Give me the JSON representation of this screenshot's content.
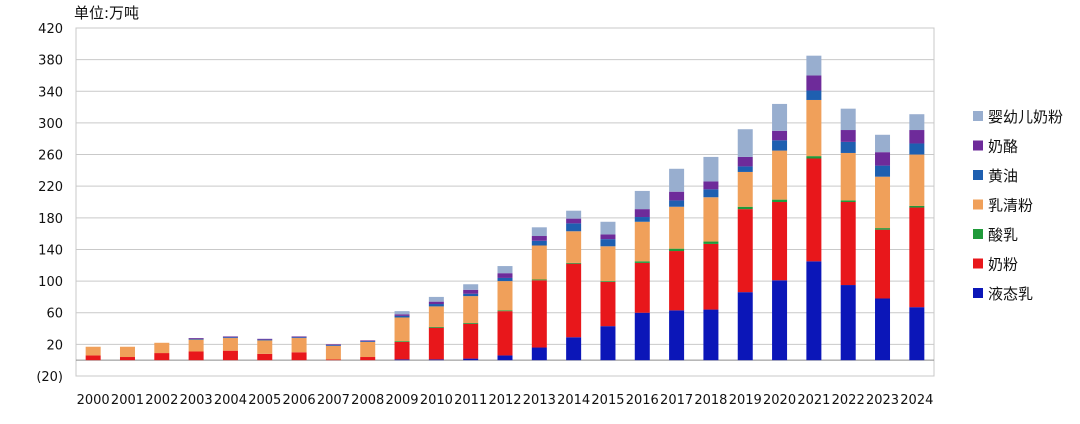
{
  "chart_data": {
    "type": "bar",
    "stacked": true,
    "unit_label": "单位:万吨",
    "categories": [
      "2000",
      "2001",
      "2002",
      "2003",
      "2004",
      "2005",
      "2006",
      "2007",
      "2008",
      "2009",
      "2010",
      "2011",
      "2012",
      "2013",
      "2014",
      "2015",
      "2016",
      "2017",
      "2018",
      "2019",
      "2020",
      "2021",
      "2022",
      "2023",
      "2024"
    ],
    "series": [
      {
        "name": "液态乳",
        "color": "#0b16b8",
        "values": [
          0,
          0,
          0,
          0,
          0,
          0,
          0,
          0,
          0,
          1,
          1,
          2,
          6,
          16,
          29,
          43,
          60,
          63,
          64,
          86,
          101,
          125,
          95,
          78,
          67
        ]
      },
      {
        "name": "奶粉",
        "color": "#e8171b",
        "values": [
          6,
          4,
          9,
          11,
          12,
          8,
          10,
          1,
          4,
          22,
          40,
          44,
          56,
          85,
          93,
          56,
          63,
          75,
          83,
          105,
          99,
          130,
          105,
          87,
          126
        ]
      },
      {
        "name": "酸乳",
        "color": "#1f9a3a",
        "values": [
          0,
          0,
          0,
          0,
          0,
          0,
          0,
          0,
          0,
          1,
          1,
          1,
          1,
          1,
          1,
          1,
          2,
          3,
          3,
          3,
          3,
          3,
          2,
          2,
          2
        ]
      },
      {
        "name": "乳清粉",
        "color": "#f0a05a",
        "values": [
          11,
          13,
          13,
          15,
          16,
          17,
          18,
          17,
          19,
          30,
          26,
          34,
          37,
          43,
          40,
          44,
          50,
          53,
          56,
          44,
          62,
          71,
          60,
          65,
          65
        ]
      },
      {
        "name": "黄油",
        "color": "#1e5fb0",
        "values": [
          0,
          0,
          0,
          1,
          1,
          1,
          1,
          1,
          1,
          2,
          3,
          3,
          4,
          6,
          10,
          9,
          6,
          8,
          10,
          7,
          13,
          12,
          14,
          14,
          14
        ]
      },
      {
        "name": "奶酪",
        "color": "#6e2b9a",
        "values": [
          0,
          0,
          0,
          1,
          1,
          1,
          1,
          1,
          1,
          2,
          3,
          5,
          6,
          6,
          6,
          6,
          10,
          11,
          10,
          12,
          12,
          19,
          15,
          17,
          17
        ]
      },
      {
        "name": "婴幼儿奶粉",
        "color": "#98aecf",
        "values": [
          0,
          0,
          0,
          0,
          0,
          0,
          0,
          0,
          0,
          4,
          6,
          7,
          9,
          11,
          10,
          16,
          23,
          29,
          31,
          35,
          34,
          25,
          27,
          22,
          20
        ]
      }
    ],
    "y_ticks": [
      -20,
      20,
      60,
      100,
      140,
      180,
      220,
      260,
      300,
      340,
      380,
      420
    ],
    "y_tick_labels": [
      "(20)",
      "20",
      "60",
      "100",
      "140",
      "180",
      "220",
      "260",
      "300",
      "340",
      "380",
      "420"
    ],
    "ylim": [
      -20,
      420
    ],
    "grid": true,
    "legend_position": "right"
  }
}
